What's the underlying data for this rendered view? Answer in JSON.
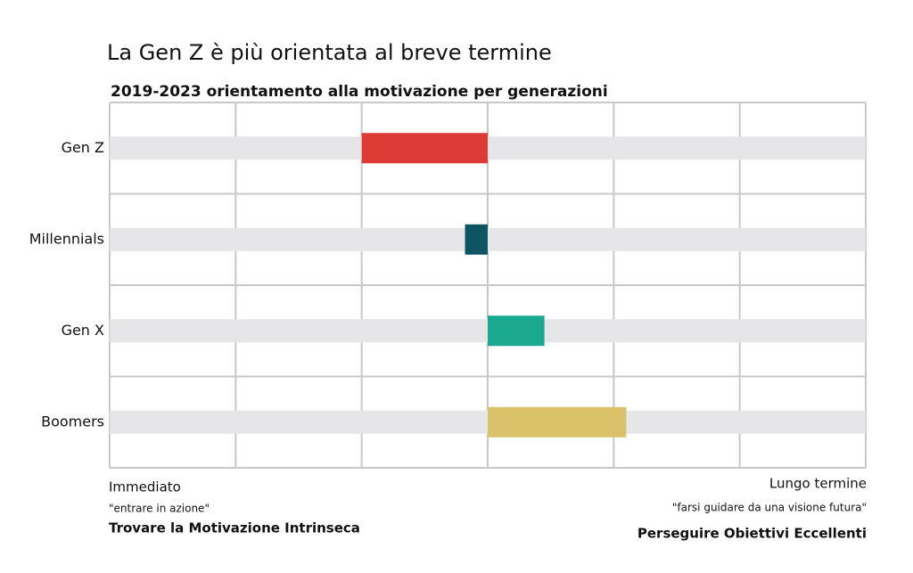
{
  "chart_data": {
    "type": "diverging-bar",
    "title": "La Gen Z è più orientata al breve termine",
    "subtitle": "2019-2023 orientamento alla motivazione per generazioni",
    "categories": [
      "Gen Z",
      "Millennials",
      "Gen X",
      "Boomers"
    ],
    "values": [
      -1,
      -0.18,
      0.45,
      1.1
    ],
    "colors": [
      "#dd3b35",
      "#0d5563",
      "#1aa88e",
      "#d9c26a"
    ],
    "xlim": [
      -3,
      3
    ],
    "xticks": [
      -3,
      -2,
      -1,
      0,
      1,
      2,
      3
    ],
    "grid": true,
    "left_labels": [
      "Immediato",
      "\"entrare in azione\"",
      "Trovare la Motivazione Intrinseca"
    ],
    "right_labels": [
      "Lungo termine",
      "\"farsi guidare da una visione futura\"",
      "Perseguire Obiettivi Eccellenti"
    ]
  }
}
